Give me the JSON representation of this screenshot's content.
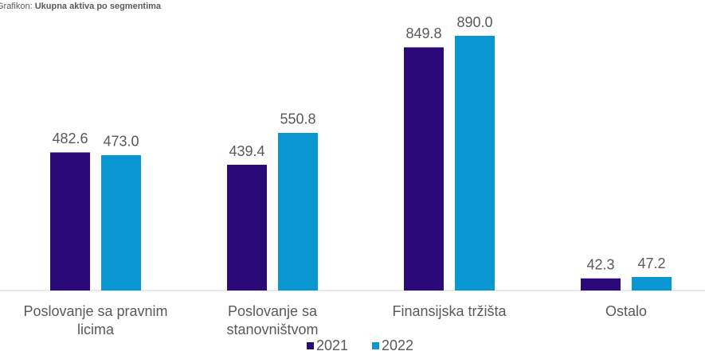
{
  "chart_data": {
    "type": "bar",
    "title_label": "Grafikon:",
    "title": "Ukupna aktiva po segmentima",
    "categories": [
      [
        "Poslovanje sa pravnim",
        "licima"
      ],
      [
        "Poslovanje sa",
        "stanovništvom"
      ],
      [
        "Finansijska tržišta"
      ],
      [
        "Ostalo"
      ]
    ],
    "series": [
      {
        "name": "2021",
        "color": "#2a0a78",
        "values": [
          482.6,
          439.4,
          849.8,
          42.3
        ],
        "value_labels": [
          "482.6",
          "439.4",
          "849.8",
          "42.3"
        ]
      },
      {
        "name": "2022",
        "color": "#0a96d0",
        "values": [
          473.0,
          550.8,
          890.0,
          47.2
        ],
        "value_labels": [
          "473.0",
          "550.8",
          "890.0",
          "47.2"
        ]
      }
    ]
  }
}
